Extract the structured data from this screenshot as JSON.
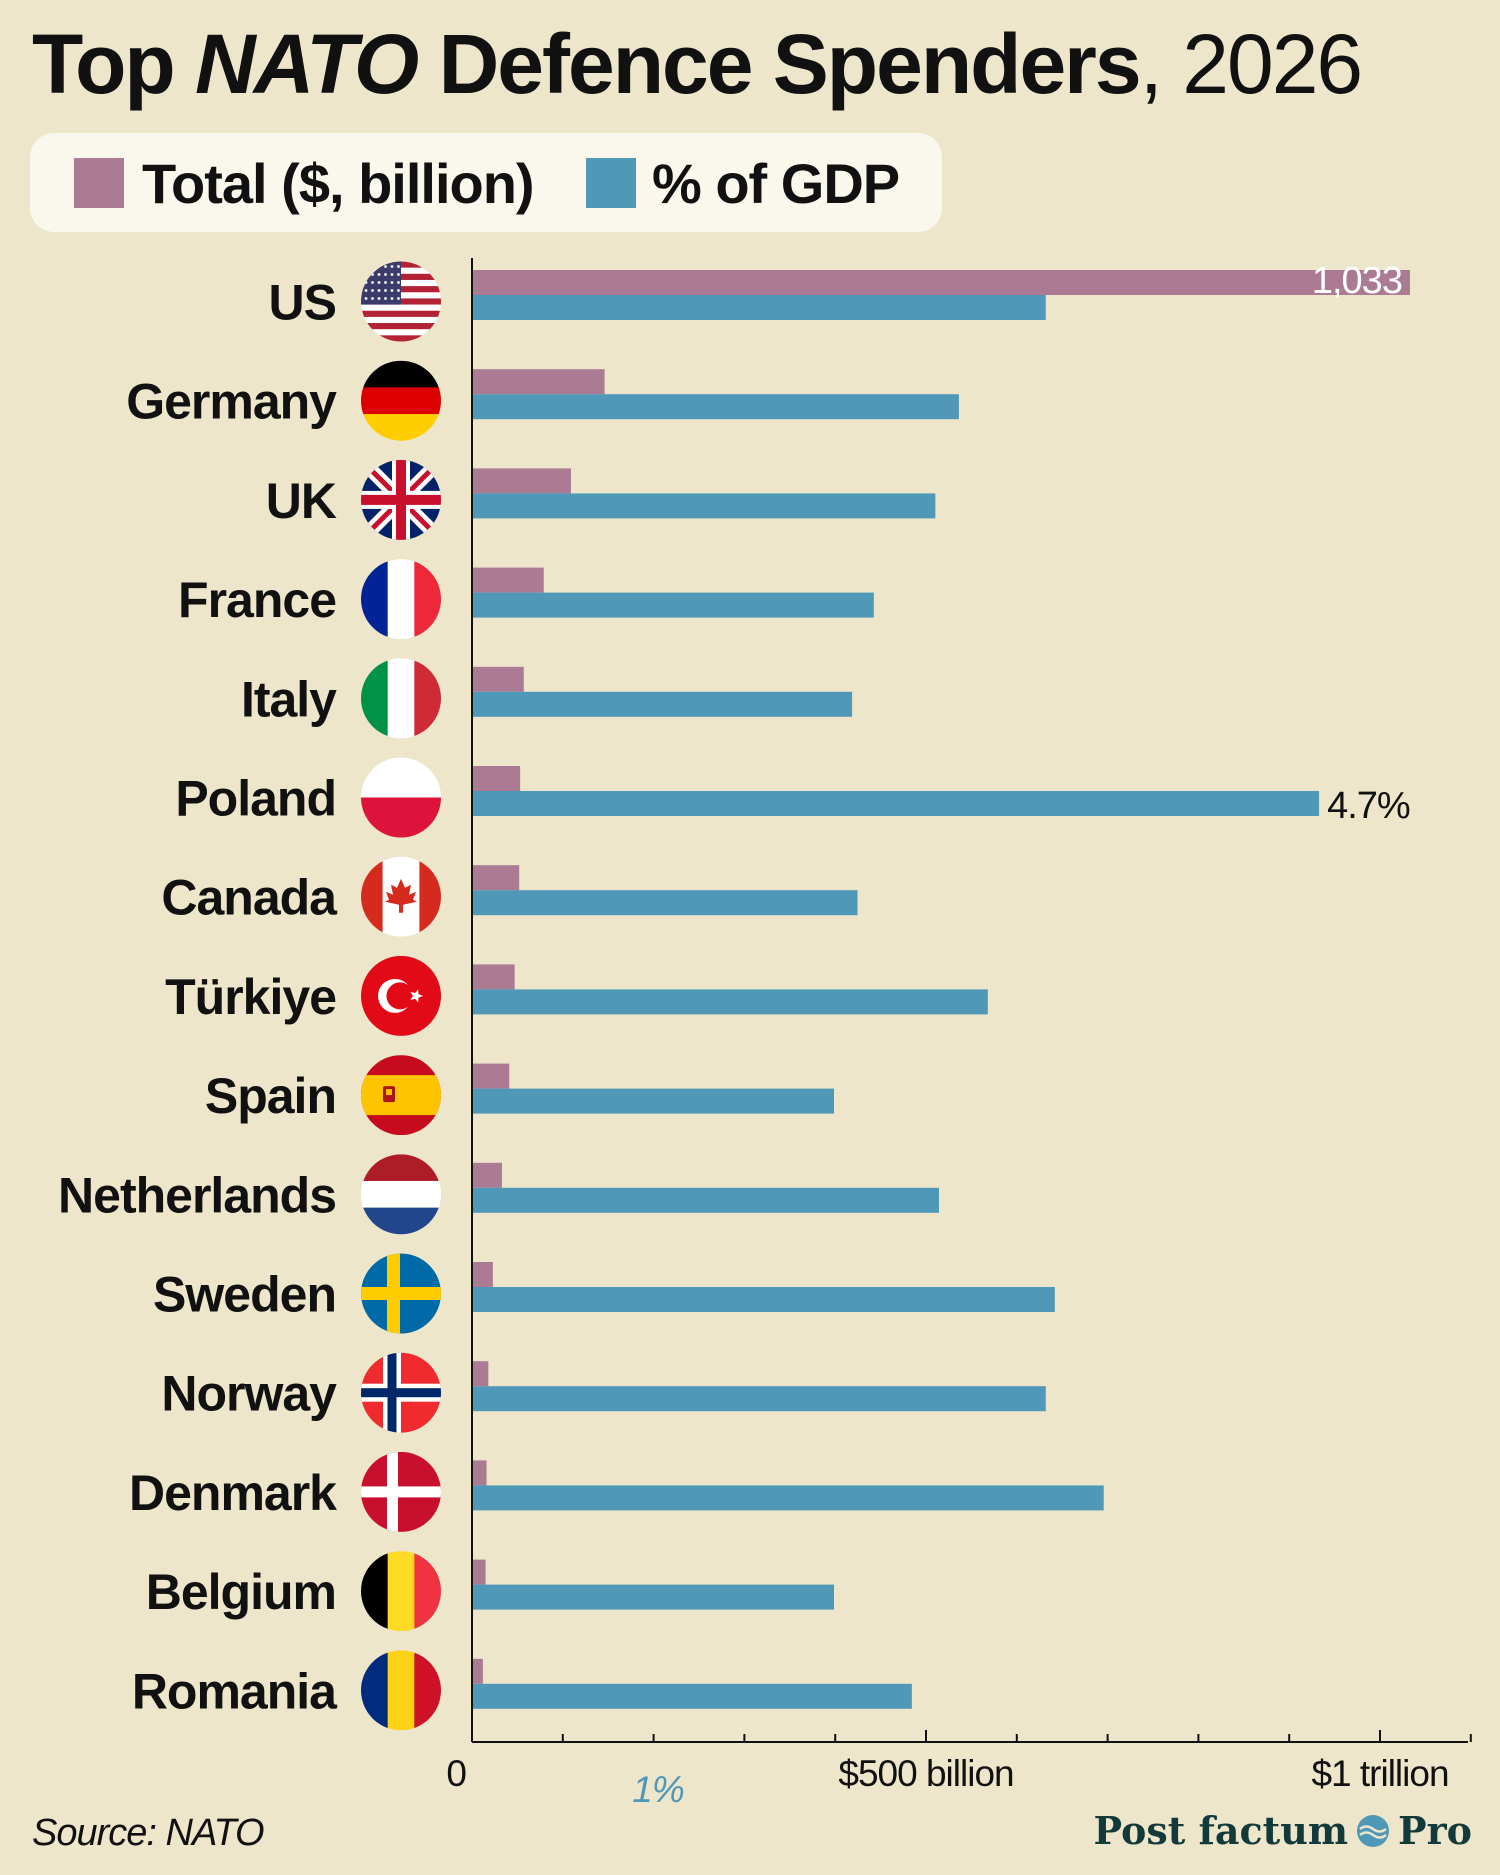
{
  "title": {
    "part1": "Top ",
    "part2": "NATO",
    "part3": " Defence Spenders",
    "part4": ", 2026"
  },
  "legend": [
    {
      "label": "Total ($, billion)",
      "color": "#ab7b94"
    },
    {
      "label": "% of GDP",
      "color": "#4f98b8"
    }
  ],
  "source": "Source: NATO",
  "brand": {
    "left": "Post factum",
    "right": "Pro"
  },
  "chart_data": {
    "type": "bar",
    "orientation": "horizontal",
    "categories": [
      "US",
      "Germany",
      "UK",
      "France",
      "Italy",
      "Poland",
      "Canada",
      "Türkiye",
      "Spain",
      "Netherlands",
      "Sweden",
      "Norway",
      "Denmark",
      "Belgium",
      "Romania"
    ],
    "flags": [
      "us-flag-icon",
      "germany-flag-icon",
      "uk-flag-icon",
      "france-flag-icon",
      "italy-flag-icon",
      "poland-flag-icon",
      "canada-flag-icon",
      "turkiye-flag-icon",
      "spain-flag-icon",
      "netherlands-flag-icon",
      "sweden-flag-icon",
      "norway-flag-icon",
      "denmark-flag-icon",
      "belgium-flag-icon",
      "romania-flag-icon"
    ],
    "series": [
      {
        "name": "Total ($, billion)",
        "color": "#ab7b94",
        "values": [
          1033,
          146,
          109,
          79,
          57,
          53,
          52,
          47,
          41,
          33,
          23,
          18,
          16,
          15,
          12
        ]
      },
      {
        "name": "% of GDP",
        "color": "#4f98b8",
        "values": [
          3.17,
          2.69,
          2.56,
          2.22,
          2.1,
          4.68,
          2.13,
          2.85,
          2.0,
          2.58,
          3.22,
          3.17,
          3.49,
          2.0,
          2.43
        ]
      }
    ],
    "data_labels": [
      {
        "category": "US",
        "series": "Total ($, billion)",
        "text": "1,033"
      },
      {
        "category": "Poland",
        "series": "% of GDP",
        "text": "4.7%"
      }
    ],
    "xaxis_total": {
      "range": [
        0,
        1100
      ],
      "ticks": [
        0,
        500,
        1000
      ],
      "tick_labels": [
        "0",
        "$500 billion",
        "$1 trillion"
      ]
    },
    "xaxis_gdp": {
      "range": [
        0,
        5.5
      ],
      "ticks": [
        1
      ],
      "tick_labels": [
        "1%"
      ]
    },
    "legend_position": "top-left",
    "grid": false
  }
}
